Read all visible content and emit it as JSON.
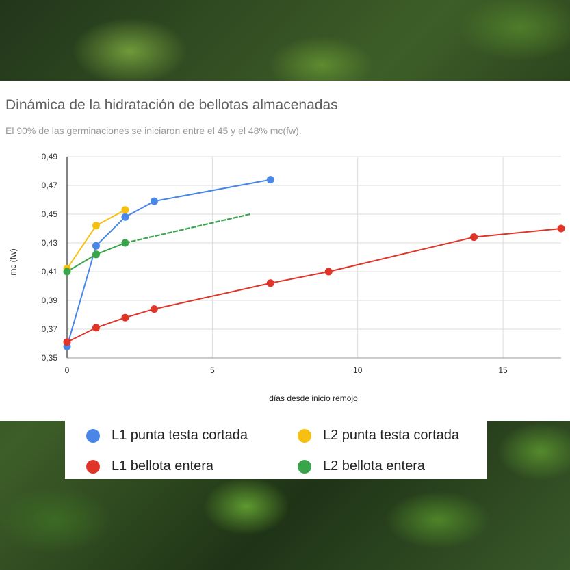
{
  "background": {
    "description": "holm oak leaves photo"
  },
  "chart_data": {
    "type": "line",
    "title": "Dinámica de la hidratación de bellotas almacenadas",
    "subtitle": "El 90% de las germinaciones se iniciaron entre el 45 y el 48% mc(fw).",
    "xlabel": "días desde inicio remojo",
    "ylabel": "mc (fw)",
    "xlim": [
      0,
      17
    ],
    "ylim": [
      0.35,
      0.49
    ],
    "xticks": [
      0,
      5,
      10,
      15
    ],
    "xtick_labels": [
      "0",
      "5",
      "10",
      "15"
    ],
    "yticks": [
      0.35,
      0.37,
      0.39,
      0.41,
      0.43,
      0.45,
      0.47,
      0.49
    ],
    "ytick_labels": [
      "0,35",
      "0,37",
      "0,39",
      "0,41",
      "0,43",
      "0,45",
      "0,47",
      "0,49"
    ],
    "grid": true,
    "legend_position": "bottom",
    "series": [
      {
        "name": "L1 punta testa cortada",
        "color": "#4a86e8",
        "x": [
          0,
          1,
          2,
          3,
          7
        ],
        "y": [
          0.358,
          0.428,
          0.448,
          0.459,
          0.474
        ]
      },
      {
        "name": "L2 punta testa cortada",
        "color": "#f6c012",
        "x": [
          0,
          1,
          2
        ],
        "y": [
          0.412,
          0.442,
          0.453
        ]
      },
      {
        "name": "L1 bellota entera",
        "color": "#e03428",
        "x": [
          0,
          1,
          2,
          3,
          7,
          9,
          14,
          17
        ],
        "y": [
          0.361,
          0.371,
          0.378,
          0.384,
          0.402,
          0.41,
          0.434,
          0.44
        ]
      },
      {
        "name": "L2 bellota entera",
        "color": "#38a54a",
        "x": [
          0,
          1,
          2
        ],
        "y": [
          0.41,
          0.422,
          0.43
        ],
        "extension": {
          "x": [
            2,
            6.3
          ],
          "y": [
            0.43,
            0.45
          ]
        }
      }
    ]
  },
  "legend": {
    "items": [
      {
        "label": "L1 punta testa cortada",
        "color": "#4a86e8"
      },
      {
        "label": "L2 punta testa cortada",
        "color": "#f6c012"
      },
      {
        "label": "L1 bellota entera",
        "color": "#e03428"
      },
      {
        "label": "L2 bellota entera",
        "color": "#38a54a"
      }
    ]
  }
}
